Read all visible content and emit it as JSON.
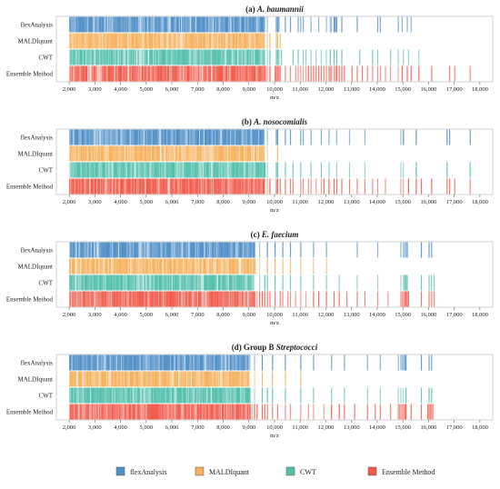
{
  "chart_data": {
    "type": "peak-barcode",
    "xlabel": "m/z",
    "xlim": [
      1500,
      18500
    ],
    "xticks": [
      2000,
      3000,
      4000,
      5000,
      6000,
      7000,
      8000,
      9000,
      10000,
      11000,
      12000,
      13000,
      14000,
      15000,
      16000,
      17000,
      18000
    ],
    "xtick_labels": [
      "2,000",
      "3,000",
      "4,000",
      "5,000",
      "6,000",
      "7,000",
      "8,000",
      "9,000",
      "10,000",
      "11,000",
      "12,000",
      "13,000",
      "14,000",
      "15,000",
      "16,000",
      "17,000",
      "18,000"
    ],
    "rows": [
      "flexAnalysis",
      "MALDIquant",
      "CWT",
      "Ensemble Method"
    ],
    "colors": {
      "flexAnalysis": "#4f8fc7",
      "MALDIquant": "#f6b25e",
      "CWT": "#56c0ad",
      "Ensemble Method": "#f25b4c"
    },
    "panels": [
      {
        "label": "(a)",
        "title": "A. baumannii",
        "series": [
          {
            "name": "flexAnalysis",
            "dense_to": 9600,
            "peaks": [
              9700,
              10050,
              10100,
              10150,
              10400,
              10600,
              10900,
              11000,
              11100,
              11400,
              11700,
              12000,
              12150,
              12200,
              12300,
              12350,
              12400,
              12600,
              13200,
              14000,
              14100,
              14800,
              14950,
              15150,
              15300
            ]
          },
          {
            "name": "MALDIquant",
            "dense_to": 9600,
            "peaks": [
              9700,
              9800,
              10050,
              10100,
              10200
            ]
          },
          {
            "name": "CWT",
            "dense_to": 9600,
            "peaks": [
              9700,
              9800,
              10050,
              10100,
              10150,
              10250,
              10700,
              10900,
              11100,
              11200,
              11400,
              11600,
              11800,
              12000,
              12150,
              12300,
              12400,
              12600,
              13300,
              13800,
              14000,
              14500,
              14800,
              15000,
              15200,
              15600
            ]
          },
          {
            "name": "Ensemble Method",
            "dense_to": 9600,
            "peaks": [
              9700,
              9800,
              10000,
              10050,
              10100,
              10150,
              10200,
              10400,
              10600,
              10800,
              10900,
              11000,
              11100,
              11200,
              11300,
              11400,
              11500,
              11600,
              11700,
              11800,
              11900,
              12000,
              12100,
              12150,
              12200,
              12300,
              12350,
              12400,
              12500,
              12600,
              12700,
              13000,
              13200,
              13400,
              13600,
              13800,
              14000,
              14100,
              14300,
              14500,
              14800,
              14950,
              15150,
              15300,
              15600,
              16100,
              16800,
              17000,
              17600
            ]
          }
        ]
      },
      {
        "label": "(b)",
        "title": "A. nosocomialis",
        "series": [
          {
            "name": "flexAnalysis",
            "dense_to": 9600,
            "peaks": [
              9700,
              10050,
              10100,
              10400,
              10600,
              11000,
              11100,
              11400,
              11800,
              12100,
              12400,
              12900,
              13500,
              14900,
              15000,
              15500,
              16700,
              16800,
              17600
            ]
          },
          {
            "name": "MALDIquant",
            "dense_to": 9600,
            "peaks": [
              9700,
              10100
            ]
          },
          {
            "name": "CWT",
            "dense_to": 9600,
            "peaks": [
              9700,
              10050,
              10100,
              10400,
              10700,
              11000,
              11400,
              11800,
              12100,
              12400,
              12900,
              13500,
              14900,
              15000,
              15500,
              16700,
              17600
            ]
          },
          {
            "name": "Ensemble Method",
            "dense_to": 9600,
            "peaks": [
              9700,
              9800,
              10050,
              10100,
              10200,
              10400,
              10600,
              10700,
              11000,
              11100,
              11300,
              11400,
              11600,
              11800,
              11900,
              12100,
              12300,
              12400,
              12600,
              12900,
              13200,
              13500,
              13800,
              14000,
              14300,
              14900,
              15000,
              15200,
              15500,
              15700,
              16100,
              16700,
              16800,
              17000,
              17600
            ]
          }
        ]
      },
      {
        "label": "(c)",
        "title": "E. faecium",
        "series": [
          {
            "name": "flexAnalysis",
            "dense_to": 9200,
            "peaks": [
              9400,
              9700,
              10000,
              10300,
              10600,
              11000,
              11500,
              12000,
              13200,
              14000,
              14900,
              15000,
              15050,
              15100,
              15150,
              15700,
              16000,
              16100
            ]
          },
          {
            "name": "MALDIquant",
            "dense_to": 9200,
            "peaks": [
              9400,
              9700,
              10000,
              10300,
              10600,
              11000,
              11500,
              12000
            ]
          },
          {
            "name": "CWT",
            "dense_to": 9200,
            "peaks": [
              9400,
              9600,
              9700,
              10000,
              10300,
              10600,
              11000,
              11500,
              12000,
              12500,
              13200,
              14000,
              14900,
              15000,
              15050,
              15100,
              15150,
              15700,
              16000,
              16100,
              16200
            ]
          },
          {
            "name": "Ensemble Method",
            "dense_to": 9200,
            "peaks": [
              9300,
              9400,
              9500,
              9600,
              9700,
              9800,
              10000,
              10200,
              10300,
              10500,
              10600,
              10800,
              11000,
              11200,
              11500,
              11700,
              12000,
              12300,
              12500,
              12800,
              13200,
              13500,
              14000,
              14400,
              14900,
              14950,
              15000,
              15050,
              15100,
              15150,
              15200,
              15700,
              16000,
              16100,
              16200
            ]
          }
        ]
      },
      {
        "label": "(d) Group B",
        "title": "Streptococci",
        "series": [
          {
            "name": "flexAnalysis",
            "dense_to": 9000,
            "peaks": [
              9200,
              9500,
              9900,
              10400,
              11000,
              11500,
              12200,
              12700,
              13600,
              14100,
              14800,
              14900,
              14950,
              15000,
              15050,
              15100,
              15700,
              16000,
              16100
            ]
          },
          {
            "name": "MALDIquant",
            "dense_to": 9000,
            "peaks": [
              9200,
              9500,
              9900,
              10400,
              11000
            ]
          },
          {
            "name": "CWT",
            "dense_to": 9000,
            "peaks": [
              9200,
              9500,
              9700,
              9900,
              10400,
              11000,
              11500,
              12200,
              12700,
              13600,
              14100,
              14800,
              14900,
              15000,
              15100,
              15700,
              16000,
              16100
            ]
          },
          {
            "name": "Ensemble Method",
            "dense_to": 9000,
            "peaks": [
              9100,
              9200,
              9300,
              9500,
              9600,
              9700,
              9900,
              10100,
              10400,
              10600,
              11000,
              11300,
              11500,
              11900,
              12200,
              12500,
              12700,
              13100,
              13600,
              13900,
              14100,
              14500,
              14800,
              14850,
              14900,
              14950,
              15000,
              15050,
              15100,
              15300,
              15700,
              15950,
              16000,
              16050,
              16100,
              16150
            ]
          }
        ]
      }
    ],
    "legend": [
      "flexAnalysis",
      "MALDIquant",
      "CWT",
      "Ensemble Method"
    ],
    "legend_position": "bottom"
  }
}
